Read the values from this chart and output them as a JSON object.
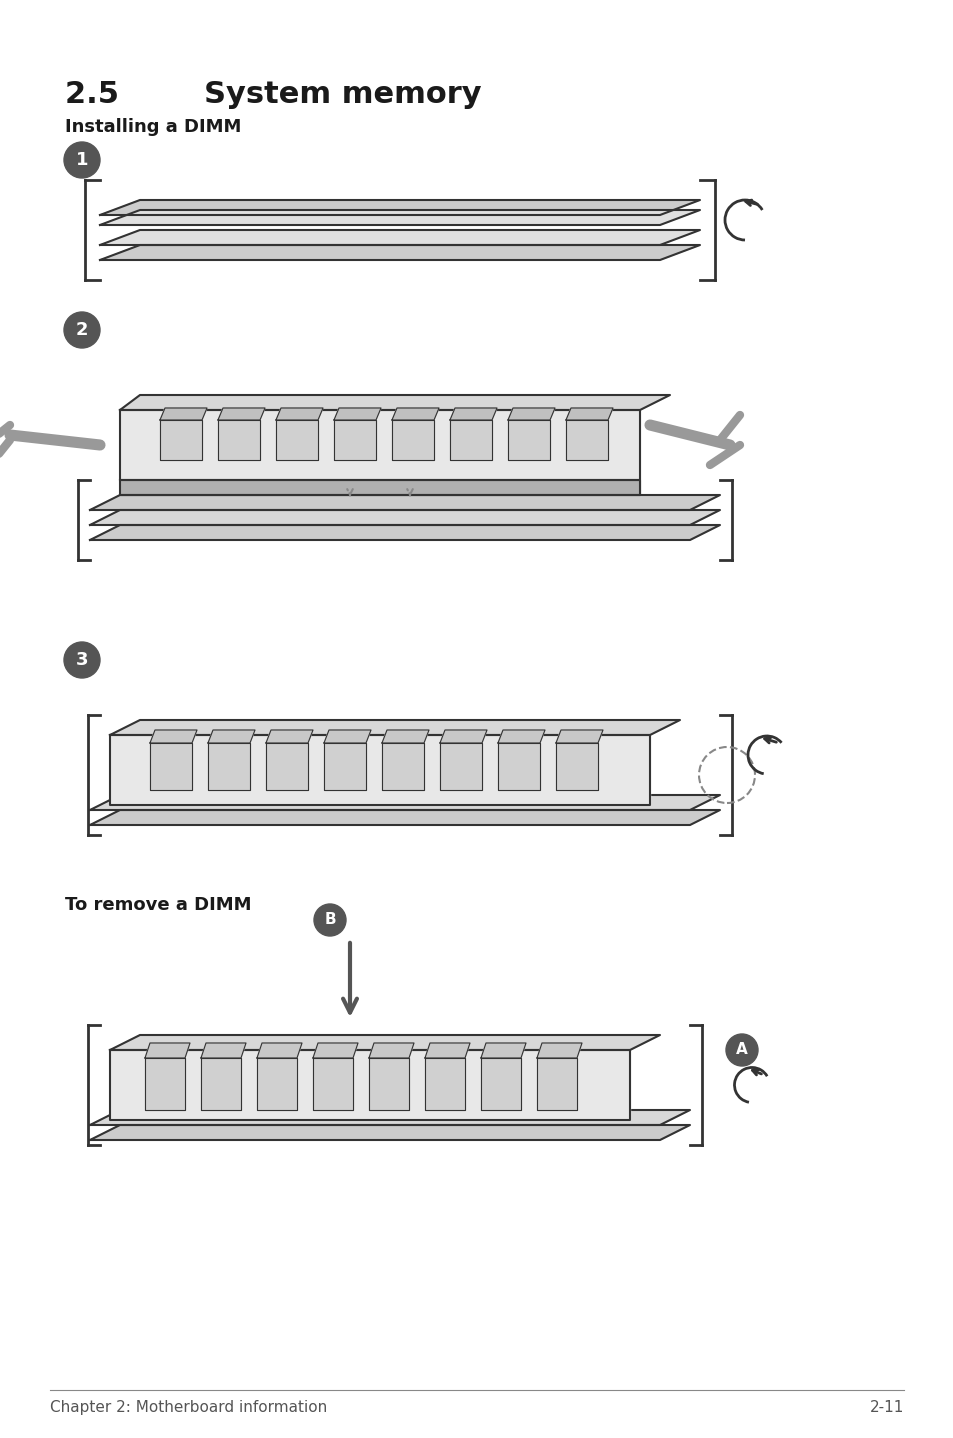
{
  "title": "2.5        System memory",
  "subtitle": "Installing a DIMM",
  "remove_title": "To remove a DIMM",
  "footer_left": "Chapter 2: Motherboard information",
  "footer_right": "2-11",
  "bg_color": "#ffffff",
  "text_color": "#1a1a1a",
  "step_circle_color": "#555555",
  "step_text_color": "#ffffff",
  "line_color": "#333333",
  "figure_width": 9.54,
  "figure_height": 14.38
}
